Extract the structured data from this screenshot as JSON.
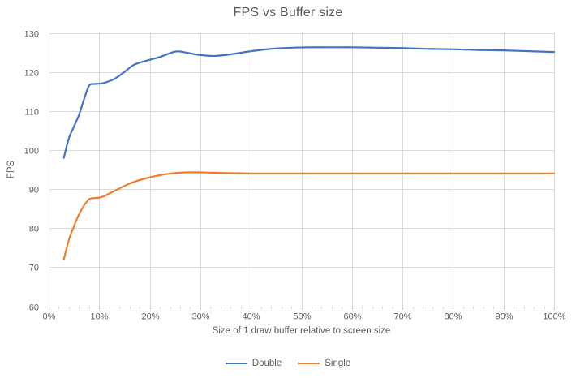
{
  "chart": {
    "title": "FPS vs Buffer size"
  },
  "chart_data": {
    "type": "line",
    "title": "FPS vs Buffer size",
    "xlabel": "Size of 1 draw buffer relative to screen size",
    "ylabel": "FPS",
    "xlim": [
      0,
      100
    ],
    "ylim": [
      60,
      130
    ],
    "grid": true,
    "smooth_lines": true,
    "legend_position": "bottom",
    "x_tick_values": [
      0,
      10,
      20,
      30,
      40,
      50,
      60,
      70,
      80,
      90,
      100
    ],
    "x_tick_labels": [
      "0%",
      "10%",
      "20%",
      "30%",
      "40%",
      "50%",
      "60%",
      "70%",
      "80%",
      "90%",
      "100%"
    ],
    "x_minor_tick_step": 2,
    "y_tick_values": [
      60,
      70,
      80,
      90,
      100,
      110,
      120,
      130
    ],
    "series": [
      {
        "name": "Double",
        "color": "#4472C4",
        "x": [
          3,
          4,
          5,
          6,
          7,
          8,
          9,
          10,
          11,
          13,
          15,
          17,
          20,
          22,
          25,
          27,
          29,
          31,
          33,
          36,
          40,
          44,
          48,
          52,
          56,
          60,
          65,
          70,
          75,
          80,
          85,
          90,
          95,
          100
        ],
        "y": [
          98,
          103,
          106,
          109,
          113,
          116.5,
          116.9,
          117,
          117.2,
          118.2,
          120,
          121.9,
          123.1,
          123.8,
          125.2,
          125.0,
          124.5,
          124.2,
          124.1,
          124.5,
          125.3,
          125.9,
          126.2,
          126.3,
          126.3,
          126.3,
          126.2,
          126.1,
          125.9,
          125.8,
          125.6,
          125.5,
          125.3,
          125.1
        ]
      },
      {
        "name": "Single",
        "color": "#ED7D31",
        "x": [
          3,
          4,
          5,
          6,
          7,
          8,
          9,
          10,
          11,
          13,
          15,
          17,
          20,
          23,
          26,
          29,
          32,
          36,
          40,
          45,
          50,
          55,
          60,
          65,
          70,
          75,
          80,
          85,
          90,
          95,
          100
        ],
        "y": [
          72,
          77,
          80.5,
          83.5,
          85.8,
          87.4,
          87.7,
          87.8,
          88.2,
          89.5,
          90.8,
          91.9,
          93,
          93.8,
          94.2,
          94.3,
          94.2,
          94.1,
          94,
          94,
          94,
          94,
          94,
          94,
          94,
          94,
          94,
          94,
          94,
          94,
          94
        ]
      }
    ]
  },
  "colors": {
    "gridline": "#D9D9D9",
    "axis_line": "#BFBFBF",
    "tick": "#BFBFBF",
    "text": "#595959",
    "background": "#FFFFFF"
  }
}
